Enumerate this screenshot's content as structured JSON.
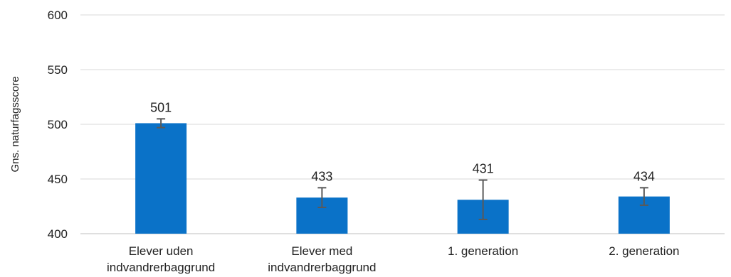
{
  "chart_data": {
    "type": "bar",
    "title": "",
    "xlabel": "",
    "ylabel": "Gns. naturfagsscore",
    "categories": [
      [
        "Elever uden",
        "indvandrerbaggrund"
      ],
      [
        "Elever med",
        "indvandrerbaggrund"
      ],
      [
        "1. generation"
      ],
      [
        "2. generation"
      ]
    ],
    "values": [
      501,
      433,
      431,
      434
    ],
    "data_labels": [
      "501",
      "433",
      "431",
      "434"
    ],
    "error_bars": [
      {
        "low": 497,
        "high": 505
      },
      {
        "low": 424,
        "high": 442
      },
      {
        "low": 413,
        "high": 449
      },
      {
        "low": 426,
        "high": 442
      }
    ],
    "ylim": [
      400,
      600
    ],
    "yticks": [
      400,
      450,
      500,
      550,
      600
    ],
    "grid": true,
    "legend": "none",
    "colors": {
      "bar": "#0a72c8",
      "grid": "#d9d9d9",
      "axis": "#bfbfbf",
      "error": "#595959"
    }
  }
}
